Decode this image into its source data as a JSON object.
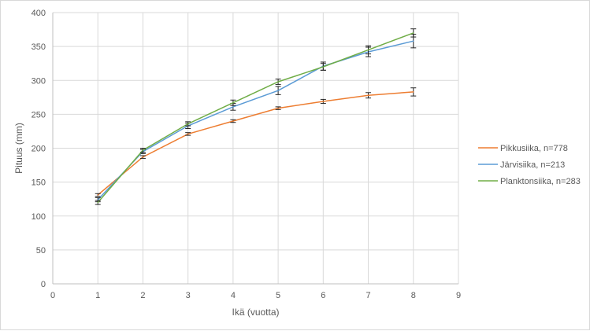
{
  "chart_data": {
    "type": "line",
    "title": "",
    "xlabel": "Ikä (vuotta)",
    "ylabel": "Pituus (mm)",
    "xlim": [
      0,
      9
    ],
    "ylim": [
      0,
      400
    ],
    "x_ticks": [
      0,
      1,
      2,
      3,
      4,
      5,
      6,
      7,
      8,
      9
    ],
    "y_ticks": [
      0,
      50,
      100,
      150,
      200,
      250,
      300,
      350,
      400
    ],
    "grid": true,
    "legend_position": "right",
    "x": [
      1,
      2,
      3,
      4,
      5,
      6,
      7,
      8
    ],
    "series": [
      {
        "name": "Pikkusiika, n=778",
        "color": "#ED7D31",
        "values": [
          131,
          187,
          221,
          240,
          259,
          269,
          278,
          283
        ],
        "errors": [
          2,
          2,
          2,
          2,
          2,
          3,
          4,
          6
        ]
      },
      {
        "name": "Järvisiika, n=213",
        "color": "#5B9BD5",
        "values": [
          124,
          195,
          233,
          261,
          285,
          321,
          342,
          358
        ],
        "errors": [
          3,
          3,
          4,
          5,
          6,
          6,
          7,
          10
        ]
      },
      {
        "name": "Planktonsiika, n=283",
        "color": "#70AD47",
        "values": [
          120,
          197,
          236,
          267,
          298,
          320,
          345,
          370
        ],
        "errors": [
          3,
          3,
          3,
          4,
          4,
          5,
          6,
          6
        ]
      }
    ]
  }
}
